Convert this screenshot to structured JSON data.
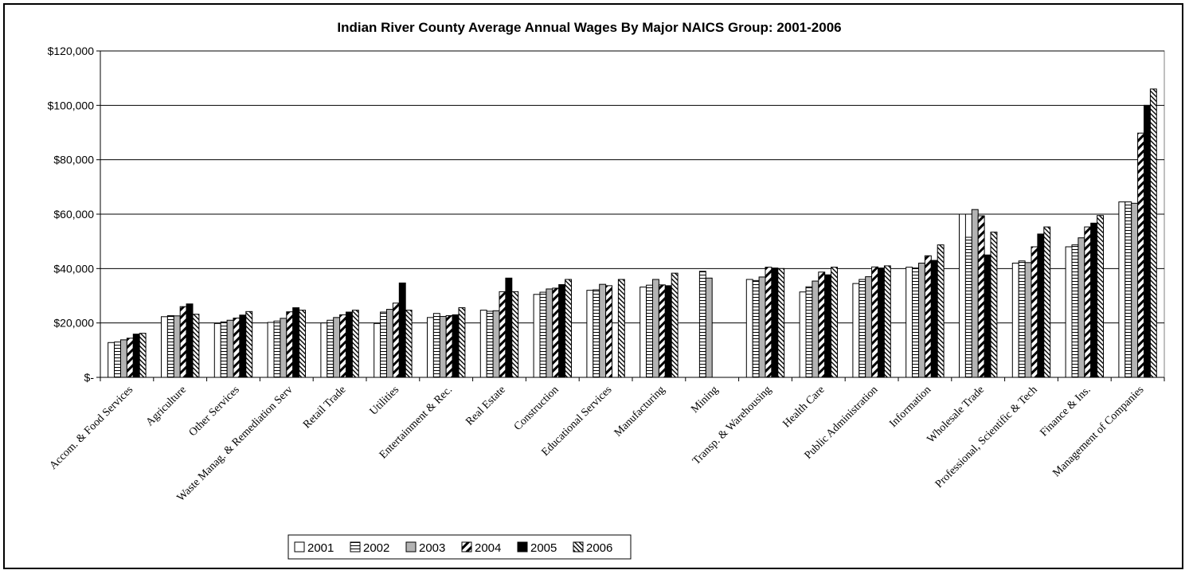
{
  "chart_data": {
    "type": "bar",
    "title": "Indian River County Average Annual Wages By Major NAICS Group: 2001-2006",
    "xlabel": "",
    "ylabel": "",
    "ylim": [
      0,
      120000
    ],
    "yticks": [
      {
        "value": 0,
        "label": "$-"
      },
      {
        "value": 20000,
        "label": "$20,000"
      },
      {
        "value": 40000,
        "label": "$40,000"
      },
      {
        "value": 60000,
        "label": "$60,000"
      },
      {
        "value": 80000,
        "label": "$80,000"
      },
      {
        "value": 100000,
        "label": "$100,000"
      },
      {
        "value": 120000,
        "label": "$120,000"
      }
    ],
    "grid": true,
    "legend_position": "bottom",
    "categories": [
      "Accom. & Food Services",
      "Agriculture",
      "Other Services",
      "Waste Manag. & Remediation Serv",
      "Retail Trade",
      "Utilities",
      "Entertainment & Rec.",
      "Real Estate",
      "Construction",
      "Educational Services",
      "Manufacturing",
      "Mining",
      "Transp. & Warehousing",
      "Health Care",
      "Public Administration",
      "Information",
      "Wholesale Trade",
      "Professional, Scientific & Tech",
      "Finance & Ins.",
      "Management of Companies"
    ],
    "series": [
      {
        "name": "2001",
        "pattern": "white",
        "values": [
          12800,
          22300,
          19800,
          20200,
          20000,
          19800,
          22000,
          24700,
          30500,
          32000,
          33200,
          null,
          36000,
          31400,
          34500,
          40500,
          60000,
          42000,
          48000,
          64500
        ]
      },
      {
        "name": "2002",
        "pattern": "hlines",
        "values": [
          13000,
          22700,
          20400,
          20700,
          21000,
          24000,
          23500,
          24300,
          31300,
          32200,
          33900,
          39000,
          35600,
          33300,
          36000,
          40200,
          51500,
          42800,
          48700,
          64500
        ]
      },
      {
        "name": "2003",
        "pattern": "gray",
        "values": [
          13800,
          22600,
          21000,
          21700,
          22000,
          25000,
          22400,
          24500,
          32500,
          34200,
          36000,
          36500,
          36900,
          35400,
          37000,
          42000,
          61700,
          42200,
          51300,
          64000
        ]
      },
      {
        "name": "2004",
        "pattern": "diag",
        "values": [
          14400,
          26000,
          21800,
          24100,
          23000,
          27300,
          22700,
          31500,
          32800,
          33700,
          34000,
          null,
          40500,
          38700,
          40600,
          44700,
          59400,
          48000,
          55300,
          89800
        ]
      },
      {
        "name": "2005",
        "pattern": "black",
        "values": [
          15900,
          27000,
          22900,
          25600,
          24000,
          34700,
          23000,
          36500,
          34100,
          null,
          33700,
          null,
          40200,
          37700,
          40200,
          43000,
          45000,
          52700,
          56700,
          100000
        ]
      },
      {
        "name": "2006",
        "pattern": "diag2",
        "values": [
          16200,
          23200,
          24200,
          24700,
          24700,
          24700,
          25600,
          31500,
          36000,
          36000,
          38300,
          null,
          40000,
          40500,
          41000,
          48700,
          53400,
          55300,
          59500,
          106000
        ]
      }
    ]
  }
}
